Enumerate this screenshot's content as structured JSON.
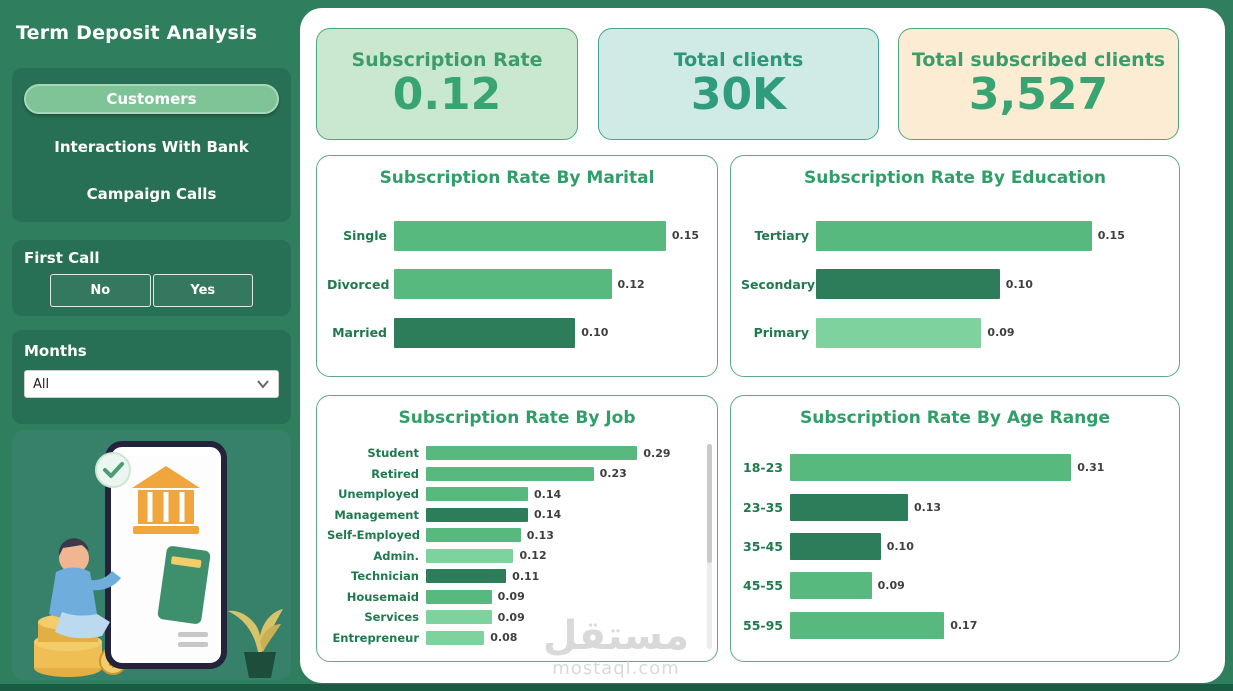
{
  "theme": {
    "page_bg": "#2F7E5E",
    "panel_bg": "#287055",
    "accent_green": "#2F9E68",
    "bar_green_medium": "#57B97E",
    "bar_green_dark": "#2E7D5A",
    "bar_green_light": "#7DD29D"
  },
  "sidebar": {
    "title": "Term Deposit Analysis",
    "nav": {
      "items": [
        {
          "label": "Customers",
          "active": true
        },
        {
          "label": "Interactions With Bank",
          "active": false
        },
        {
          "label": "Campaign Calls",
          "active": false
        }
      ]
    },
    "first_call": {
      "label": "First Call",
      "options": [
        "No",
        "Yes"
      ]
    },
    "months": {
      "label": "Months",
      "selected": "All"
    }
  },
  "kpis": [
    {
      "title": "Subscription Rate",
      "value": "0.12",
      "bg": "#C9E8CF",
      "border": "#4BA87B",
      "title_color": "#3E9B6B",
      "value_color": "#37A471"
    },
    {
      "title": "Total clients",
      "value": "30K",
      "bg": "#D0EBE5",
      "border": "#3FA591",
      "title_color": "#2F967B",
      "value_color": "#2F9C7D"
    },
    {
      "title": "Total subscribed clients",
      "value": "3,527",
      "bg": "#FBECD3",
      "border": "#4BA87B",
      "title_color": "#3E9B6B",
      "value_color": "#37A471"
    }
  ],
  "chart_data": [
    {
      "type": "bar",
      "orientation": "horizontal",
      "title": "Subscription Rate By Marital",
      "categories": [
        "Single",
        "Divorced",
        "Married"
      ],
      "values": [
        0.15,
        0.12,
        0.1
      ],
      "value_labels": [
        "0.15",
        "0.12",
        "0.10"
      ],
      "bar_colors": [
        "#57B97E",
        "#57B97E",
        "#2E7D5A"
      ],
      "xlim": [
        0,
        0.15
      ],
      "grid": false,
      "legend": false
    },
    {
      "type": "bar",
      "orientation": "horizontal",
      "title": "Subscription Rate By Education",
      "categories": [
        "Tertiary",
        "Secondary",
        "Primary"
      ],
      "values": [
        0.15,
        0.1,
        0.09
      ],
      "value_labels": [
        "0.15",
        "0.10",
        "0.09"
      ],
      "bar_colors": [
        "#57B97E",
        "#2E7D5A",
        "#7DD29D"
      ],
      "xlim": [
        0,
        0.15
      ],
      "grid": false,
      "legend": false
    },
    {
      "type": "bar",
      "orientation": "horizontal",
      "title": "Subscription Rate By Job",
      "categories": [
        "Student",
        "Retired",
        "Unemployed",
        "Management",
        "Self-Employed",
        "Admin.",
        "Technician",
        "Housemaid",
        "Services",
        "Entrepreneur"
      ],
      "values": [
        0.29,
        0.23,
        0.14,
        0.14,
        0.13,
        0.12,
        0.11,
        0.09,
        0.09,
        0.08
      ],
      "value_labels": [
        "0.29",
        "0.23",
        "0.14",
        "0.14",
        "0.13",
        "0.12",
        "0.11",
        "0.09",
        "0.09",
        "0.08"
      ],
      "bar_colors": [
        "#57B97E",
        "#57B97E",
        "#57B97E",
        "#2E7D5A",
        "#57B97E",
        "#7DD29D",
        "#2E7D5A",
        "#57B97E",
        "#7DD29D",
        "#7DD29D"
      ],
      "xlim": [
        0,
        0.29
      ],
      "grid": false,
      "legend": false,
      "scrollbar": true
    },
    {
      "type": "bar",
      "orientation": "horizontal",
      "title": "Subscription Rate By Age Range",
      "categories": [
        "18-23",
        "23-35",
        "35-45",
        "45-55",
        "55-95"
      ],
      "values": [
        0.31,
        0.13,
        0.1,
        0.09,
        0.17
      ],
      "value_labels": [
        "0.31",
        "0.13",
        "0.10",
        "0.09",
        "0.17"
      ],
      "bar_colors": [
        "#57B97E",
        "#2E7D5A",
        "#2E7D5A",
        "#57B97E",
        "#57B97E"
      ],
      "xlim": [
        0,
        0.31
      ],
      "grid": false,
      "legend": false
    }
  ],
  "watermark": {
    "text_arabic": "مستقل",
    "text_latin": "mostaql.com"
  }
}
